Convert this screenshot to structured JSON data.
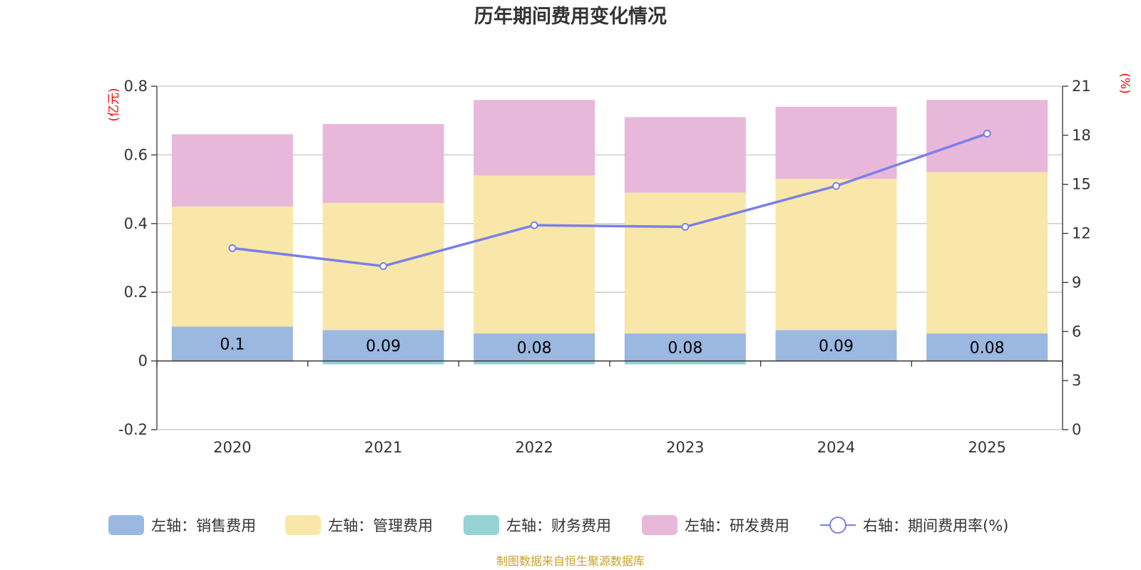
{
  "chart_data": {
    "type": "bar",
    "stacked": true,
    "title": "历年期间费用变化情况",
    "categories": [
      "2020",
      "2021",
      "2022",
      "2023",
      "2024",
      "2025"
    ],
    "left_axis": {
      "unit": "(亿元)",
      "ylim": [
        -0.2,
        0.8
      ],
      "ticks": [
        "-0.2",
        "0",
        "0.2",
        "0.4",
        "0.6",
        "0.8"
      ],
      "tick_values": [
        -0.2,
        0,
        0.2,
        0.4,
        0.6,
        0.8
      ]
    },
    "right_axis": {
      "unit": "(%)",
      "ylim": [
        0,
        21
      ],
      "ticks": [
        "0",
        "3",
        "6",
        "9",
        "12",
        "15",
        "18",
        "21"
      ],
      "tick_values": [
        0,
        3,
        6,
        9,
        12,
        15,
        18,
        21
      ]
    },
    "series": [
      {
        "name": "左轴：销售费用",
        "color": "#9bb8e1",
        "axis": "left",
        "values": [
          0.1,
          0.09,
          0.08,
          0.08,
          0.09,
          0.08
        ],
        "labels": [
          "0.1",
          "0.09",
          "0.08",
          "0.08",
          "0.09",
          "0.08"
        ]
      },
      {
        "name": "左轴：管理费用",
        "color": "#f8e7a8",
        "axis": "left",
        "values": [
          0.35,
          0.37,
          0.46,
          0.41,
          0.44,
          0.47
        ]
      },
      {
        "name": "左轴：财务费用",
        "color": "#96d4d4",
        "axis": "left",
        "values": [
          0.0,
          -0.01,
          -0.01,
          -0.01,
          0.0,
          0.0
        ]
      },
      {
        "name": "左轴：研发费用",
        "color": "#e8b8da",
        "axis": "left",
        "values": [
          0.21,
          0.23,
          0.22,
          0.22,
          0.21,
          0.21
        ]
      },
      {
        "name": "右轴：期间费用率(%)",
        "color": "#7b7fea",
        "axis": "right",
        "type": "line",
        "values": [
          11.1,
          10.0,
          12.5,
          12.4,
          14.9,
          18.1
        ]
      }
    ],
    "source": "制图数据来自恒生聚源数据库"
  }
}
